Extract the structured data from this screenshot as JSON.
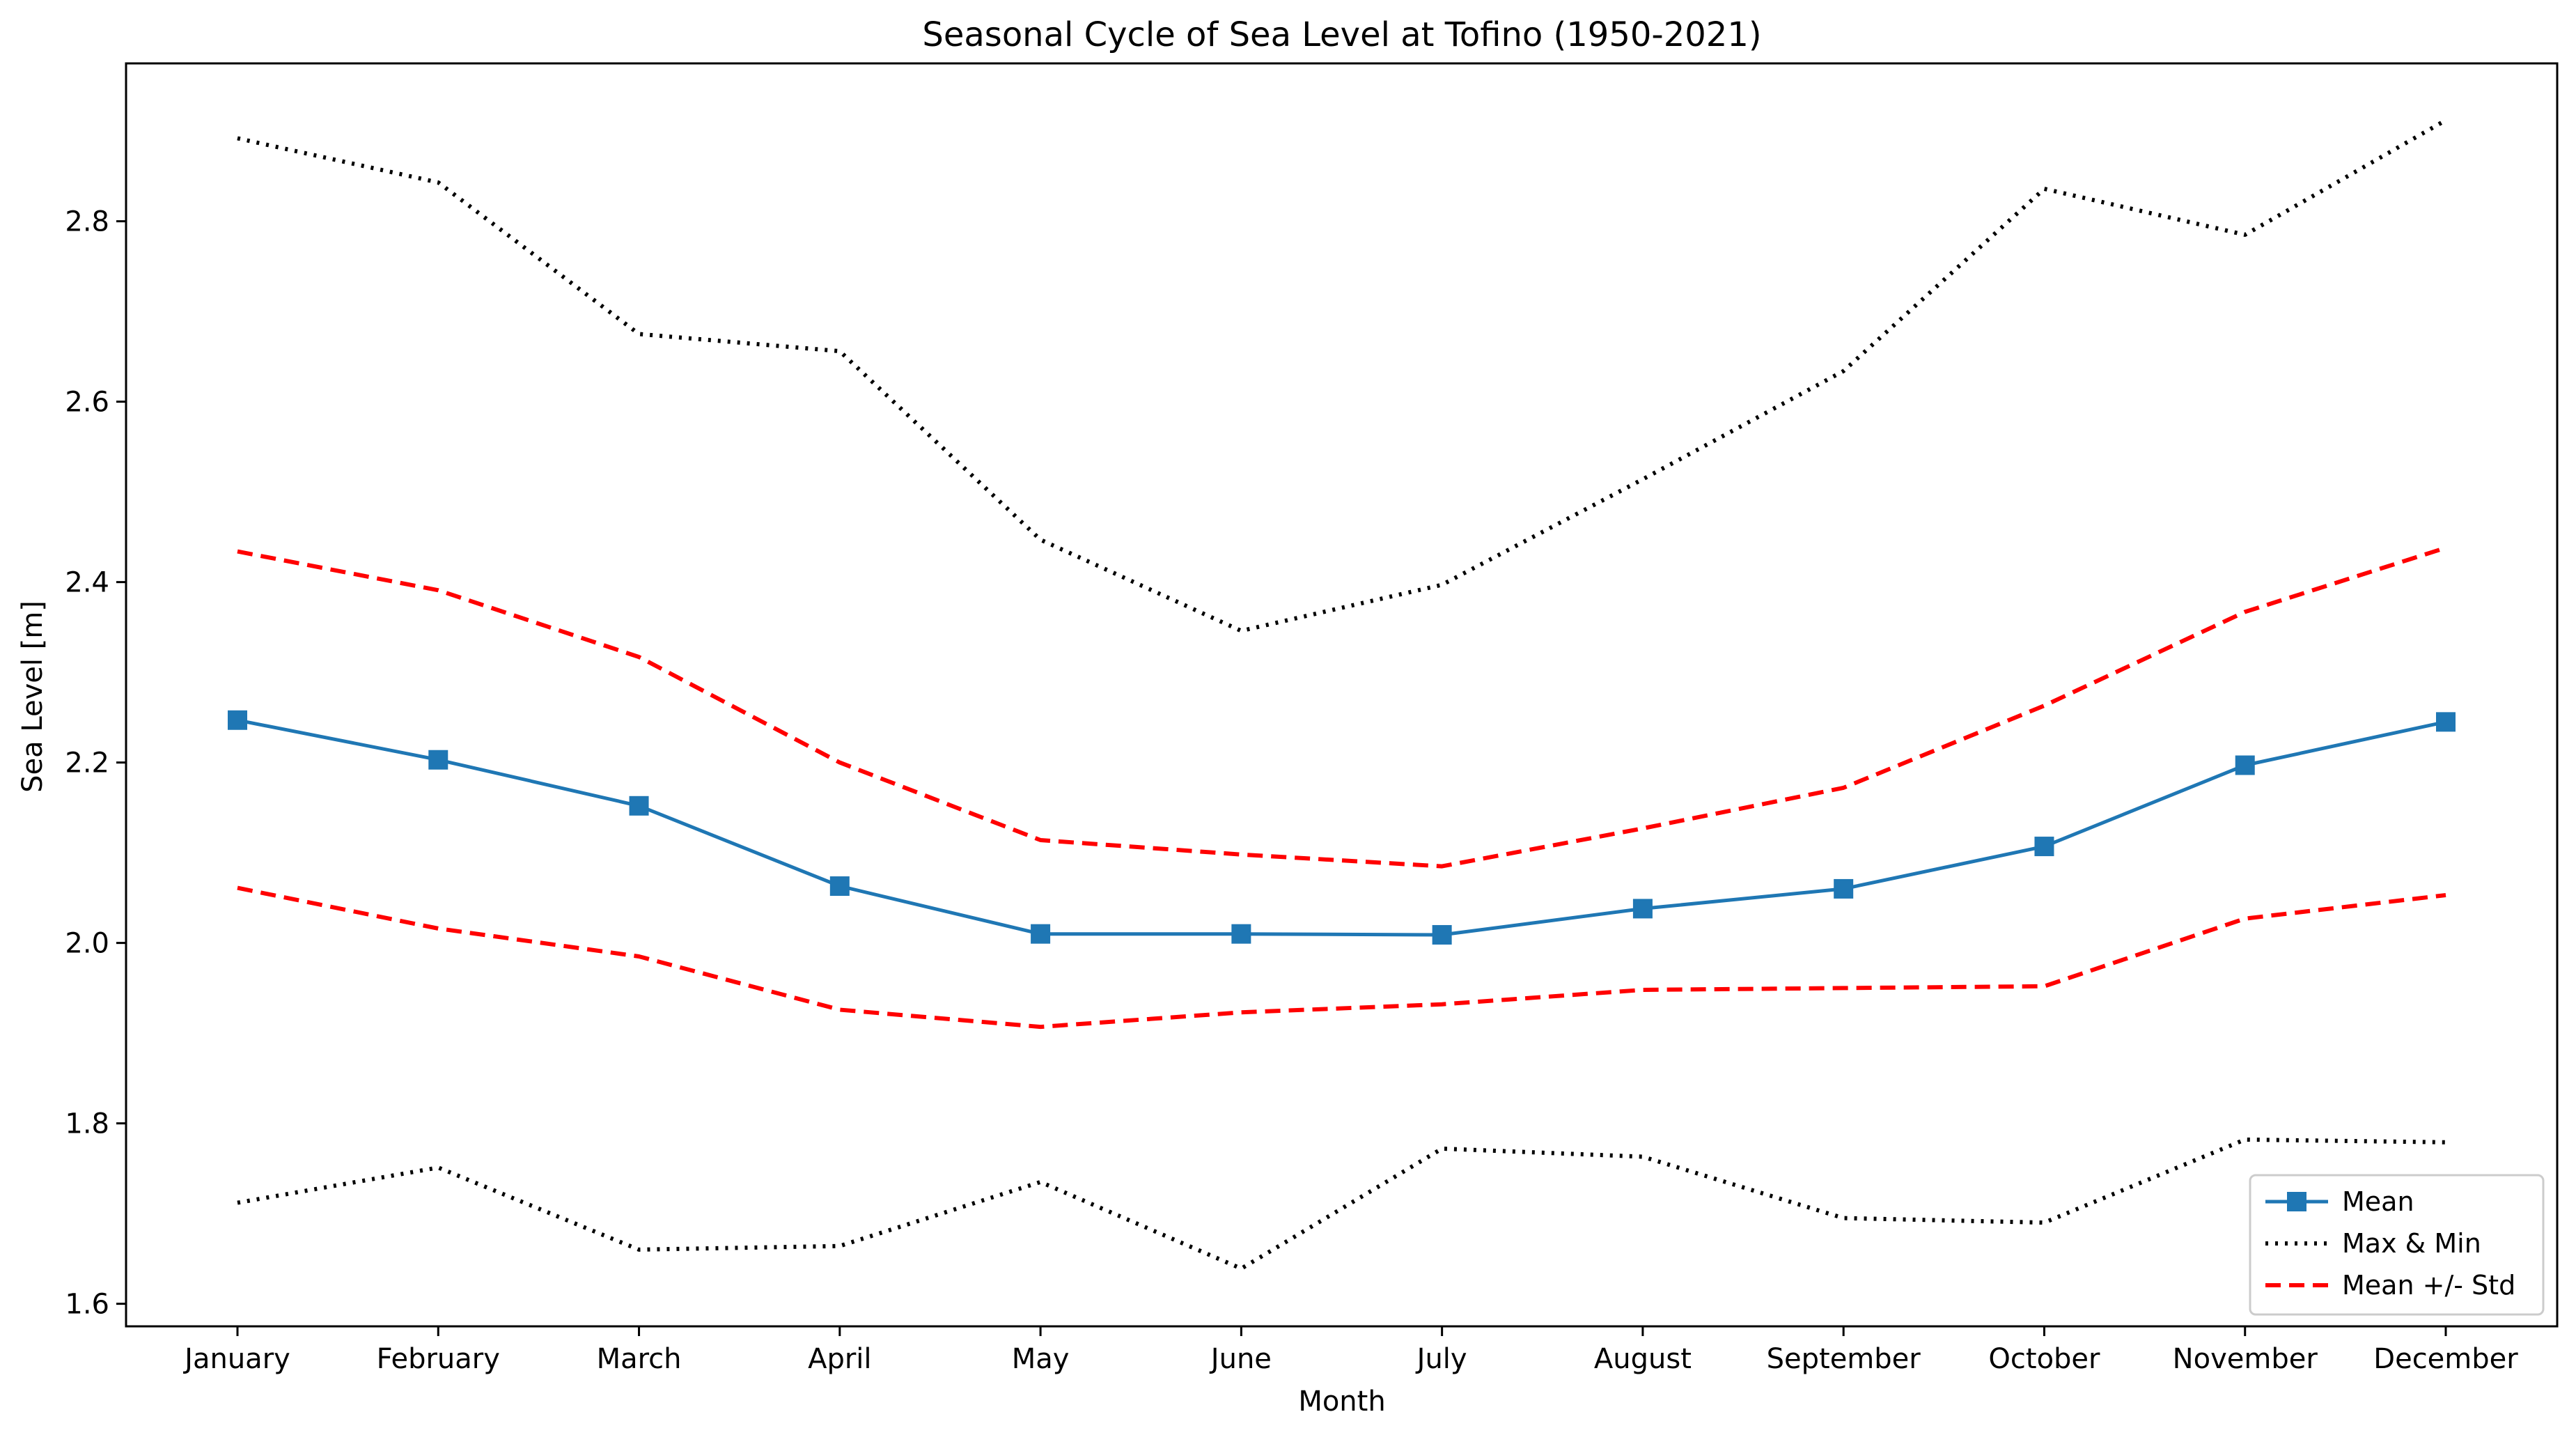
{
  "chart_data": {
    "type": "line",
    "title": "Seasonal Cycle of Sea Level at Tofino (1950-2021)",
    "xlabel": "Month",
    "ylabel": "Sea Level [m]",
    "categories": [
      "January",
      "February",
      "March",
      "April",
      "May",
      "June",
      "July",
      "August",
      "September",
      "October",
      "November",
      "December"
    ],
    "ylim": [
      1.575,
      2.975
    ],
    "yticks": [
      "1.6",
      "1.8",
      "2.0",
      "2.2",
      "2.4",
      "2.6",
      "2.8"
    ],
    "grid": false,
    "legend_position": "lower-right",
    "series": [
      {
        "name": "Mean",
        "style": "solid",
        "marker": "square",
        "color": "#1f77b4",
        "values": [
          2.247,
          2.203,
          2.152,
          2.063,
          2.01,
          2.01,
          2.009,
          2.038,
          2.06,
          2.107,
          2.197,
          2.245
        ]
      },
      {
        "name": "Max & Min",
        "style": "dotted",
        "color": "#000000",
        "legend": true,
        "values": [
          2.892,
          2.843,
          2.675,
          2.656,
          2.447,
          2.346,
          2.397,
          2.514,
          2.634,
          2.836,
          2.785,
          2.912
        ]
      },
      {
        "name": "Min",
        "style": "dotted",
        "color": "#000000",
        "legend": false,
        "values": [
          1.712,
          1.751,
          1.66,
          1.664,
          1.735,
          1.639,
          1.772,
          1.763,
          1.695,
          1.69,
          1.782,
          1.779
        ]
      },
      {
        "name": "Mean +/- Std",
        "style": "dashed",
        "color": "#ff0000",
        "legend": true,
        "values": [
          2.434,
          2.391,
          2.317,
          2.2,
          2.114,
          2.098,
          2.085,
          2.127,
          2.172,
          2.263,
          2.367,
          2.438
        ]
      },
      {
        "name": "Mean - Std",
        "style": "dashed",
        "color": "#ff0000",
        "legend": false,
        "values": [
          2.061,
          2.016,
          1.985,
          1.926,
          1.907,
          1.923,
          1.932,
          1.948,
          1.95,
          1.952,
          2.027,
          2.053
        ]
      }
    ]
  }
}
